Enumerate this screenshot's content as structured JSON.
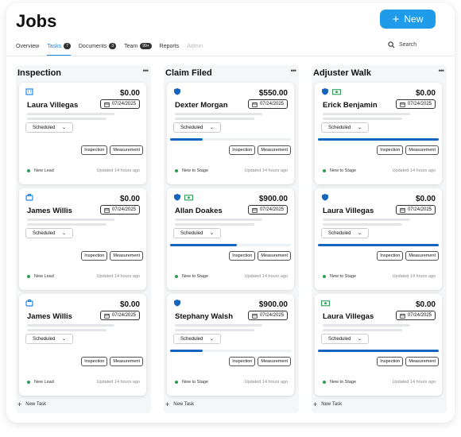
{
  "header": {
    "title": "Jobs",
    "new_button": "New",
    "search": "Search"
  },
  "tabs": [
    {
      "label": "Overview"
    },
    {
      "label": "Tasks",
      "badge": "7",
      "active": true
    },
    {
      "label": "Documents",
      "badge": "3"
    },
    {
      "label": "Team",
      "badge": "99+"
    },
    {
      "label": "Reports"
    },
    {
      "label": "Admin",
      "disabled": true
    }
  ],
  "columns": [
    {
      "title": "Inspection",
      "new_task": "New Task",
      "cards": [
        {
          "amount": "$0.00",
          "name": "Laura Villegas",
          "date": "07/24/2025",
          "status": "Scheduled",
          "tags": [
            "Inspection",
            "Measurement"
          ],
          "stage": "New Lead",
          "updated": "Updated 14 hours ago"
        },
        {
          "amount": "$0.00",
          "name": "James Willis",
          "date": "07/24/2025",
          "status": "Scheduled",
          "tags": [
            "Inspection",
            "Measurement"
          ],
          "stage": "New Lead",
          "updated": "Updated 14 hours ago"
        },
        {
          "amount": "$0.00",
          "name": "James Willis",
          "date": "07/24/2025",
          "status": "Scheduled",
          "tags": [
            "Inspection",
            "Measurement"
          ],
          "stage": "New Lead",
          "updated": "Updated 14 hours ago"
        }
      ]
    },
    {
      "title": "Claim Filed",
      "new_task": "New Task",
      "cards": [
        {
          "amount": "$550.00",
          "name": "Dexter Morgan",
          "date": "07/24/2025",
          "status": "Scheduled",
          "progress": 0.27,
          "tags": [
            "Inspection",
            "Measurement"
          ],
          "stage": "New to Stage",
          "updated": "Updated 14 hours ago"
        },
        {
          "amount": "$900.00",
          "name": "Allan Doakes",
          "date": "07/24/2025",
          "status": "Scheduled",
          "progress": 0.55,
          "tags": [
            "Inspection",
            "Measurement"
          ],
          "stage": "New to Stage",
          "updated": "Updated 14 hours ago"
        },
        {
          "amount": "$900.00",
          "name": "Stephany Walsh",
          "date": "07/24/2025",
          "status": "Scheduled",
          "progress": 0.27,
          "tags": [
            "Inspection",
            "Measurement"
          ],
          "stage": "New to Stage",
          "updated": "Updated 14 hours ago"
        }
      ]
    },
    {
      "title": "Adjuster Walk",
      "new_task": "New Task",
      "cards": [
        {
          "amount": "$0.00",
          "name": "Erick Benjamin",
          "date": "07/24/2025",
          "status": "Scheduled",
          "progress": 1,
          "tags": [
            "Inspection",
            "Measurement"
          ],
          "stage": "New to Stage",
          "updated": "Updated 14 hours ago"
        },
        {
          "amount": "$0.00",
          "name": "Laura Villegas",
          "date": "07/24/2025",
          "status": "Scheduled",
          "progress": 1,
          "tags": [
            "Inspection",
            "Measurement"
          ],
          "stage": "New to Stage",
          "updated": "Updated 14 hours ago"
        },
        {
          "amount": "$0.00",
          "name": "Laura Villegas",
          "date": "07/24/2025",
          "status": "Scheduled",
          "progress": 1,
          "tags": [
            "Inspection",
            "Measurement"
          ],
          "stage": "New to Stage",
          "updated": "Updated 14 hours ago"
        }
      ]
    }
  ]
}
